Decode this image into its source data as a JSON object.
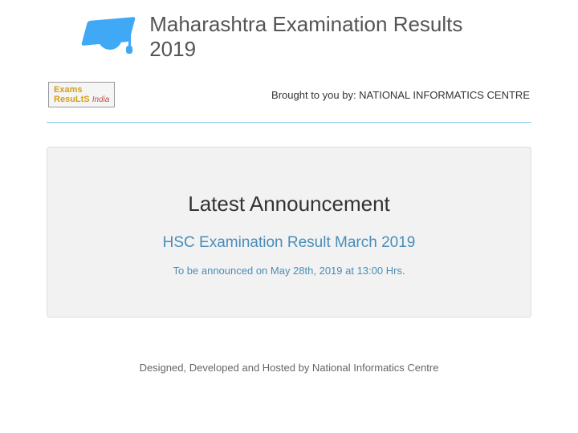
{
  "header": {
    "title": "Maharashtra Examination Results 2019"
  },
  "subheader": {
    "logo": {
      "line1": "Exams",
      "line2": "ResuLtS",
      "suffix": "India"
    },
    "brought_by": "Brought to you by: NATIONAL INFORMATICS CENTRE"
  },
  "announcement": {
    "heading": "Latest Announcement",
    "result_title": "HSC Examination Result March 2019",
    "timing": "To be announced on May 28th, 2019 at 13:00 Hrs."
  },
  "footer": {
    "text": "Designed, Developed and Hosted by National Informatics Centre"
  },
  "colors": {
    "cap": "#3fa9f5",
    "title": "#555555",
    "card_bg": "#f2f2f2",
    "link": "#4a8db8",
    "divider": "#87ceeb"
  }
}
